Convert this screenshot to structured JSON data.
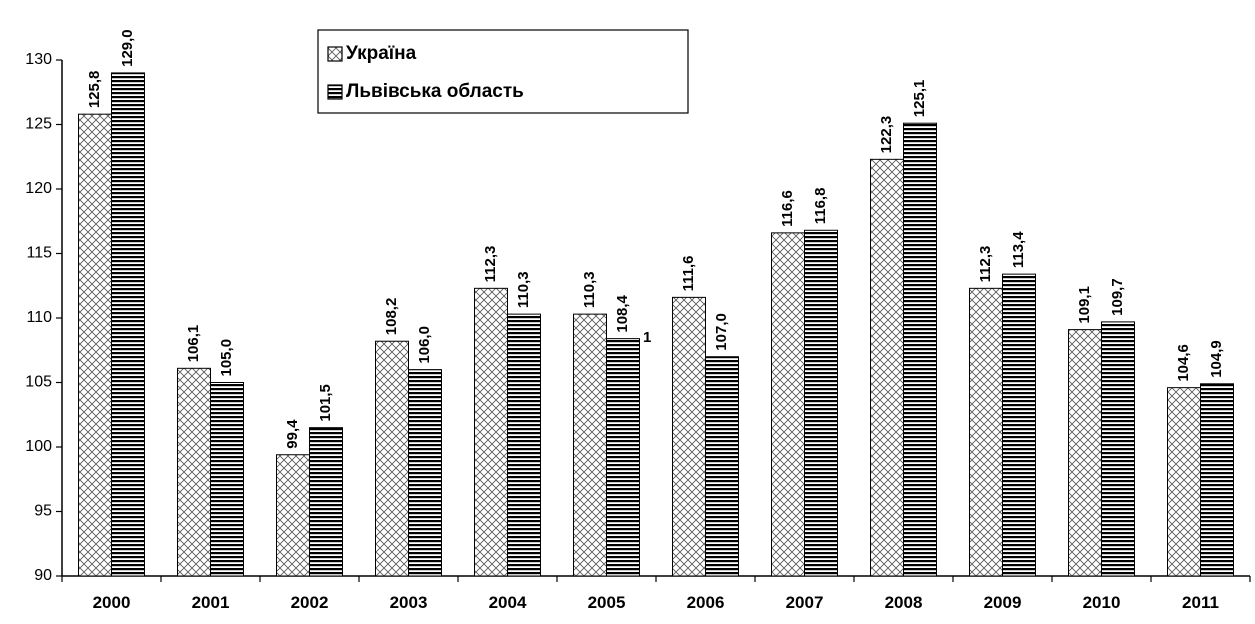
{
  "chart_data": {
    "type": "bar",
    "categories": [
      "2000",
      "2001",
      "2002",
      "2003",
      "2004",
      "2005",
      "2006",
      "2007",
      "2008",
      "2009",
      "2010",
      "2011"
    ],
    "series": [
      {
        "name": "Україна",
        "color": "#000000",
        "pattern": "crosshatch",
        "values": [
          125.8,
          106.1,
          99.4,
          108.2,
          112.3,
          110.3,
          111.6,
          116.6,
          122.3,
          112.3,
          109.1,
          104.6
        ],
        "value_labels": [
          "125,8",
          "106,1",
          "99,4",
          "108,2",
          "112,3",
          "110,3",
          "111,6",
          "116,6",
          "122,3",
          "112,3",
          "109,1",
          "104,6"
        ]
      },
      {
        "name": "Львівська область",
        "color": "#000000",
        "pattern": "hstripes",
        "values": [
          129.0,
          105.0,
          101.5,
          106.0,
          110.3,
          108.4,
          107.0,
          116.8,
          125.1,
          113.4,
          109.7,
          104.9
        ],
        "value_labels": [
          "129,0",
          "105,0",
          "101,5",
          "106,0",
          "110,3",
          "108,4",
          "107,0",
          "116,8",
          "125,1",
          "113,4",
          "109,7",
          "104,9"
        ]
      }
    ],
    "annotations": [
      "1"
    ],
    "ylim": [
      90,
      130
    ],
    "yticks": [
      90,
      95,
      100,
      105,
      110,
      115,
      120,
      125,
      130
    ],
    "grid": false,
    "legend": "top"
  }
}
